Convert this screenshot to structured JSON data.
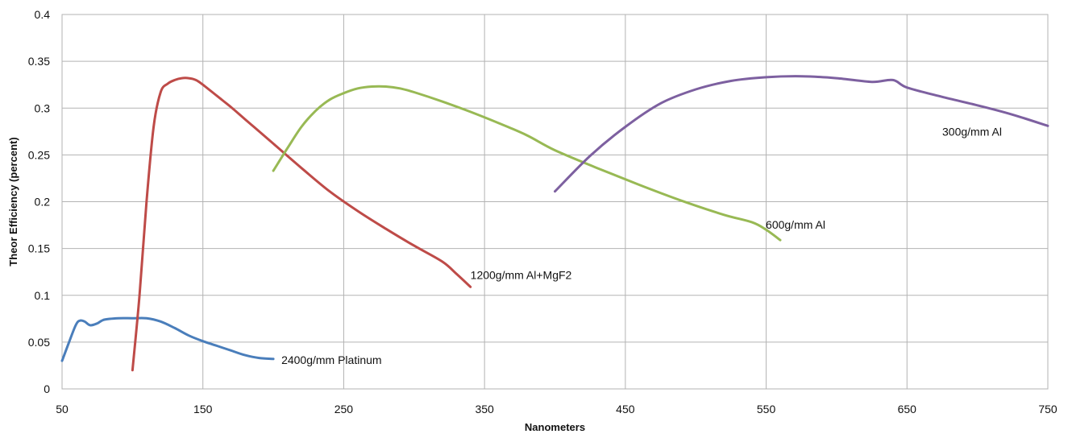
{
  "chart_data": {
    "type": "line",
    "title": "",
    "xlabel": "Nanometers",
    "ylabel": "Theor Efficiency (percent)",
    "xlim": [
      50,
      750
    ],
    "ylim": [
      0,
      0.4
    ],
    "x_ticks": [
      50,
      150,
      250,
      350,
      450,
      550,
      650,
      750
    ],
    "y_ticks": [
      0,
      0.05,
      0.1,
      0.15,
      0.2,
      0.25,
      0.3,
      0.35,
      0.4
    ],
    "x_tick_labels": [
      "50",
      "150",
      "250",
      "350",
      "450",
      "550",
      "650",
      "750"
    ],
    "y_tick_labels": [
      "0",
      "0.05",
      "0.1",
      "0.15",
      "0.2",
      "0.25",
      "0.3",
      "0.35",
      "0.4"
    ],
    "grid": true,
    "legend": "none",
    "series": [
      {
        "name": "2400g/mm Platinum",
        "color": "#4a7ebb",
        "x": [
          50,
          55,
          60,
          63,
          66,
          70,
          75,
          80,
          90,
          100,
          110,
          120,
          130,
          140,
          150,
          160,
          170,
          180,
          190,
          200
        ],
        "y": [
          0.03,
          0.05,
          0.069,
          0.073,
          0.072,
          0.068,
          0.07,
          0.074,
          0.0755,
          0.0755,
          0.0755,
          0.072,
          0.065,
          0.057,
          0.051,
          0.046,
          0.041,
          0.036,
          0.033,
          0.032
        ]
      },
      {
        "name": "1200g/mm Al+MgF2",
        "color": "#be4b48",
        "x": [
          100,
          105,
          110,
          115,
          120,
          125,
          130,
          135,
          140,
          145,
          150,
          160,
          170,
          180,
          190,
          200,
          220,
          240,
          260,
          280,
          300,
          320,
          330,
          340
        ],
        "y": [
          0.02,
          0.1,
          0.2,
          0.28,
          0.317,
          0.326,
          0.33,
          0.332,
          0.332,
          0.33,
          0.325,
          0.313,
          0.301,
          0.288,
          0.275,
          0.262,
          0.236,
          0.211,
          0.19,
          0.171,
          0.153,
          0.136,
          0.123,
          0.109
        ]
      },
      {
        "name": "600g/mm Al",
        "color": "#98b954",
        "x": [
          200,
          210,
          220,
          230,
          240,
          250,
          260,
          270,
          280,
          290,
          300,
          320,
          340,
          360,
          380,
          400,
          430,
          460,
          490,
          520,
          540,
          550,
          560
        ],
        "y": [
          0.233,
          0.257,
          0.28,
          0.297,
          0.309,
          0.316,
          0.321,
          0.323,
          0.323,
          0.321,
          0.317,
          0.307,
          0.296,
          0.284,
          0.271,
          0.255,
          0.236,
          0.218,
          0.201,
          0.186,
          0.178,
          0.17,
          0.159
        ]
      },
      {
        "name": "300g/mm Al",
        "color": "#7d60a0",
        "x": [
          400,
          425,
          450,
          475,
          500,
          525,
          550,
          575,
          600,
          625,
          640,
          650,
          675,
          700,
          725,
          750
        ],
        "y": [
          0.211,
          0.249,
          0.28,
          0.305,
          0.32,
          0.329,
          0.333,
          0.334,
          0.332,
          0.328,
          0.33,
          0.322,
          0.312,
          0.303,
          0.293,
          0.281
        ]
      }
    ]
  }
}
